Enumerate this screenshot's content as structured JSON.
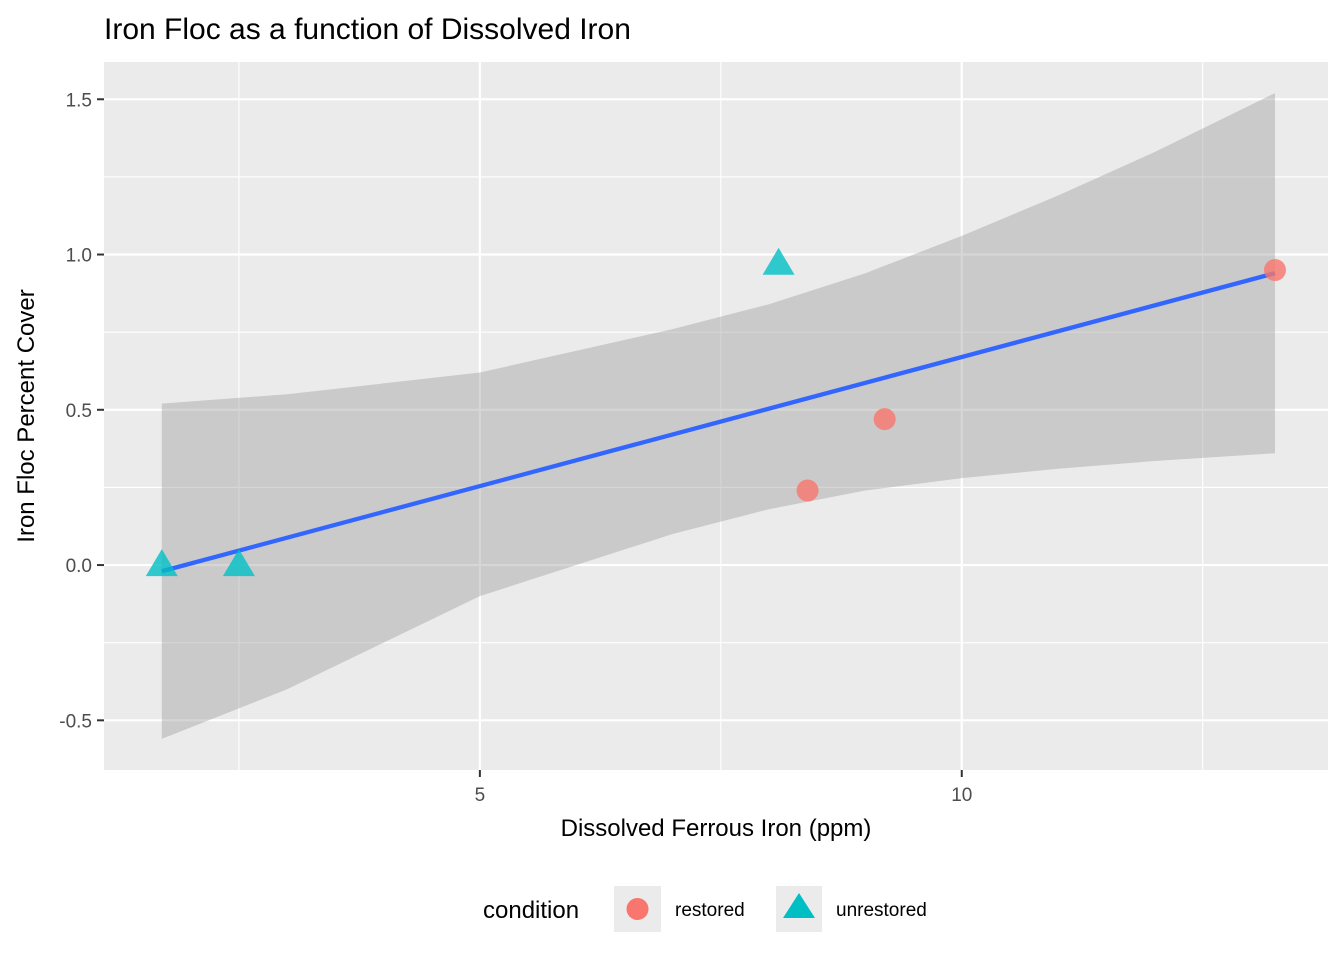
{
  "chart_data": {
    "type": "scatter",
    "title": "Iron Floc as a function of Dissolved Iron",
    "xlabel": "Dissolved Ferrous Iron (ppm)",
    "ylabel": "Iron Floc Percent Cover",
    "xlim": [
      1.1,
      13.8
    ],
    "ylim": [
      -0.66,
      1.62
    ],
    "x_ticks": [
      5,
      10
    ],
    "x_tick_labels": [
      "5",
      "10"
    ],
    "x_minor_ticks": [
      2.5,
      7.5,
      12.5
    ],
    "y_ticks": [
      -0.5,
      0.0,
      0.5,
      1.0,
      1.5
    ],
    "y_tick_labels": [
      "-0.5",
      "0.0",
      "0.5",
      "1.0",
      "1.5"
    ],
    "y_minor_ticks": [
      -0.25,
      0.25,
      0.75,
      1.25
    ],
    "grid": true,
    "legend": {
      "title": "condition",
      "position": "bottom",
      "entries": [
        {
          "label": "restored",
          "color": "#F8766D",
          "shape": "circle"
        },
        {
          "label": "unrestored",
          "color": "#00BFC4",
          "shape": "triangle"
        }
      ]
    },
    "series": [
      {
        "name": "restored",
        "color": "#F8766D",
        "shape": "circle",
        "points": [
          {
            "x": 8.4,
            "y": 0.24
          },
          {
            "x": 9.2,
            "y": 0.47
          },
          {
            "x": 13.25,
            "y": 0.95
          }
        ]
      },
      {
        "name": "unrestored",
        "color": "#00BFC4",
        "shape": "triangle",
        "points": [
          {
            "x": 1.7,
            "y": 0.0
          },
          {
            "x": 2.5,
            "y": 0.0
          },
          {
            "x": 8.1,
            "y": 0.97
          }
        ]
      }
    ],
    "fit": {
      "method": "linear",
      "color": "#3366FF",
      "x_range": [
        1.7,
        13.25
      ],
      "y_at_range": [
        -0.02,
        0.94
      ],
      "ci_color": "#999999",
      "ci_band": [
        {
          "x": 1.7,
          "lo": -0.56,
          "hi": 0.52
        },
        {
          "x": 3.0,
          "lo": -0.4,
          "hi": 0.55
        },
        {
          "x": 5.0,
          "lo": -0.1,
          "hi": 0.62
        },
        {
          "x": 7.0,
          "lo": 0.1,
          "hi": 0.76
        },
        {
          "x": 8.0,
          "lo": 0.18,
          "hi": 0.84
        },
        {
          "x": 9.0,
          "lo": 0.24,
          "hi": 0.94
        },
        {
          "x": 10.0,
          "lo": 0.28,
          "hi": 1.06
        },
        {
          "x": 11.0,
          "lo": 0.31,
          "hi": 1.19
        },
        {
          "x": 12.0,
          "lo": 0.335,
          "hi": 1.33
        },
        {
          "x": 13.25,
          "lo": 0.36,
          "hi": 1.52
        }
      ]
    }
  }
}
